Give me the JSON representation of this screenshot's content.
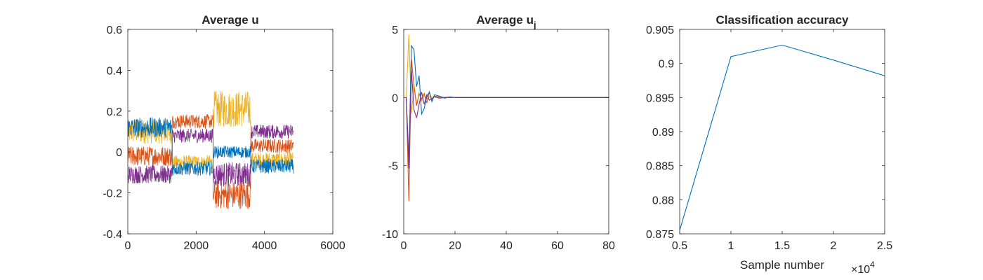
{
  "colors": {
    "blue": "#0072BD",
    "orange": "#D95319",
    "yellow": "#EDB120",
    "purple": "#7E2F8E",
    "axis": "#262626"
  },
  "chart_data": [
    {
      "type": "line",
      "title": "Average u",
      "xlabel": "",
      "ylabel": "",
      "xlim": [
        0,
        6000
      ],
      "ylim": [
        -0.4,
        0.6
      ],
      "xticks": [
        0,
        2000,
        4000,
        6000
      ],
      "xtick_labels": [
        "0",
        "2000",
        "4000",
        "6000"
      ],
      "yticks": [
        -0.4,
        -0.2,
        0,
        0.2,
        0.4,
        0.6
      ],
      "ytick_labels": [
        "-0.4",
        "-0.2",
        "0",
        "0.2",
        "0.4",
        "0.6"
      ],
      "grid": false,
      "noisy_segments_note": "piecewise-constant signals with noise; per series: segment boundaries x, segment mean, noise amplitude",
      "boundaries": [
        0,
        1300,
        2500,
        3600,
        4850
      ],
      "series": [
        {
          "color": "yellow",
          "means": [
            0.1,
            -0.05,
            0.21,
            -0.04
          ],
          "noise": [
            0.06,
            0.035,
            0.09,
            0.04
          ]
        },
        {
          "color": "orange",
          "means": [
            -0.02,
            0.15,
            -0.21,
            0.03
          ],
          "noise": [
            0.05,
            0.035,
            0.07,
            0.035
          ]
        },
        {
          "color": "purple",
          "means": [
            -0.11,
            0.08,
            -0.11,
            0.1
          ],
          "noise": [
            0.045,
            0.035,
            0.06,
            0.035
          ]
        },
        {
          "color": "blue",
          "means": [
            0.12,
            -0.08,
            0.0,
            -0.07
          ],
          "noise": [
            0.05,
            0.035,
            0.03,
            0.035
          ]
        }
      ]
    },
    {
      "type": "line",
      "title": "Average u",
      "title_subscript": "j",
      "xlabel": "",
      "ylabel": "",
      "xlim": [
        0,
        80
      ],
      "ylim": [
        -10,
        5
      ],
      "xticks": [
        0,
        20,
        40,
        60,
        80
      ],
      "xtick_labels": [
        "0",
        "20",
        "40",
        "60",
        "80"
      ],
      "yticks": [
        -10,
        -5,
        0,
        5
      ],
      "ytick_labels": [
        "-10",
        "-5",
        "0",
        "5"
      ],
      "grid": false,
      "series": [
        {
          "color": "yellow",
          "x": [
            1,
            2,
            3,
            4,
            5,
            6,
            7,
            8,
            9,
            10,
            12,
            14,
            16,
            18,
            20,
            25,
            30,
            80
          ],
          "y": [
            0,
            4.6,
            -1.2,
            1.0,
            -0.6,
            0.3,
            -0.25,
            0.15,
            -0.1,
            0.05,
            0.05,
            0,
            0.02,
            0,
            0,
            0,
            0,
            0
          ]
        },
        {
          "color": "orange",
          "x": [
            1,
            2,
            3,
            4,
            5,
            6,
            7,
            8,
            9,
            10,
            11,
            12,
            14,
            16,
            18,
            20,
            25,
            30,
            80
          ],
          "y": [
            0,
            -7.6,
            2.8,
            0.8,
            -0.6,
            0.3,
            -0.1,
            0.3,
            -0.4,
            0.4,
            -0.2,
            0.1,
            0.05,
            0,
            0.05,
            0,
            0,
            0,
            0
          ]
        },
        {
          "color": "blue",
          "x": [
            1,
            2,
            3,
            4,
            5,
            6,
            7,
            8,
            9,
            10,
            11,
            12,
            14,
            16,
            18,
            20,
            25,
            30,
            80
          ],
          "y": [
            0,
            -4.5,
            3.8,
            3.5,
            0.8,
            1.6,
            -1.2,
            -0.8,
            0.1,
            0.4,
            -0.3,
            0.2,
            0.1,
            -0.05,
            0.05,
            0,
            0,
            0,
            0
          ]
        },
        {
          "color": "purple",
          "x": [
            1,
            2,
            3,
            4,
            5,
            6,
            7,
            8,
            9,
            10,
            12,
            14,
            16,
            18,
            20,
            25,
            30,
            80
          ],
          "y": [
            0,
            -5.2,
            2.0,
            -0.9,
            -1.5,
            -0.5,
            0.4,
            -0.5,
            0.2,
            -0.2,
            0.05,
            -0.05,
            0,
            0,
            0,
            0,
            0,
            0
          ]
        }
      ]
    },
    {
      "type": "line",
      "title": "Classification accuracy",
      "xlabel": "Sample number",
      "x_exponent_base": "×10",
      "x_exponent": "4",
      "ylabel": "",
      "xlim": [
        0.5,
        2.5
      ],
      "ylim": [
        0.875,
        0.905
      ],
      "xticks": [
        0.5,
        1,
        1.5,
        2,
        2.5
      ],
      "xtick_labels": [
        "0.5",
        "1",
        "1.5",
        "2",
        "2.5"
      ],
      "yticks": [
        0.875,
        0.88,
        0.885,
        0.89,
        0.895,
        0.9,
        0.905
      ],
      "ytick_labels": [
        "0.875",
        "0.88",
        "0.885",
        "0.89",
        "0.895",
        "0.9",
        "0.905"
      ],
      "grid": false,
      "series": [
        {
          "color": "blue",
          "x": [
            0.5,
            1,
            1.5,
            2,
            2.5
          ],
          "y": [
            0.8755,
            0.901,
            0.9027,
            0.9005,
            0.8982
          ]
        }
      ]
    }
  ]
}
